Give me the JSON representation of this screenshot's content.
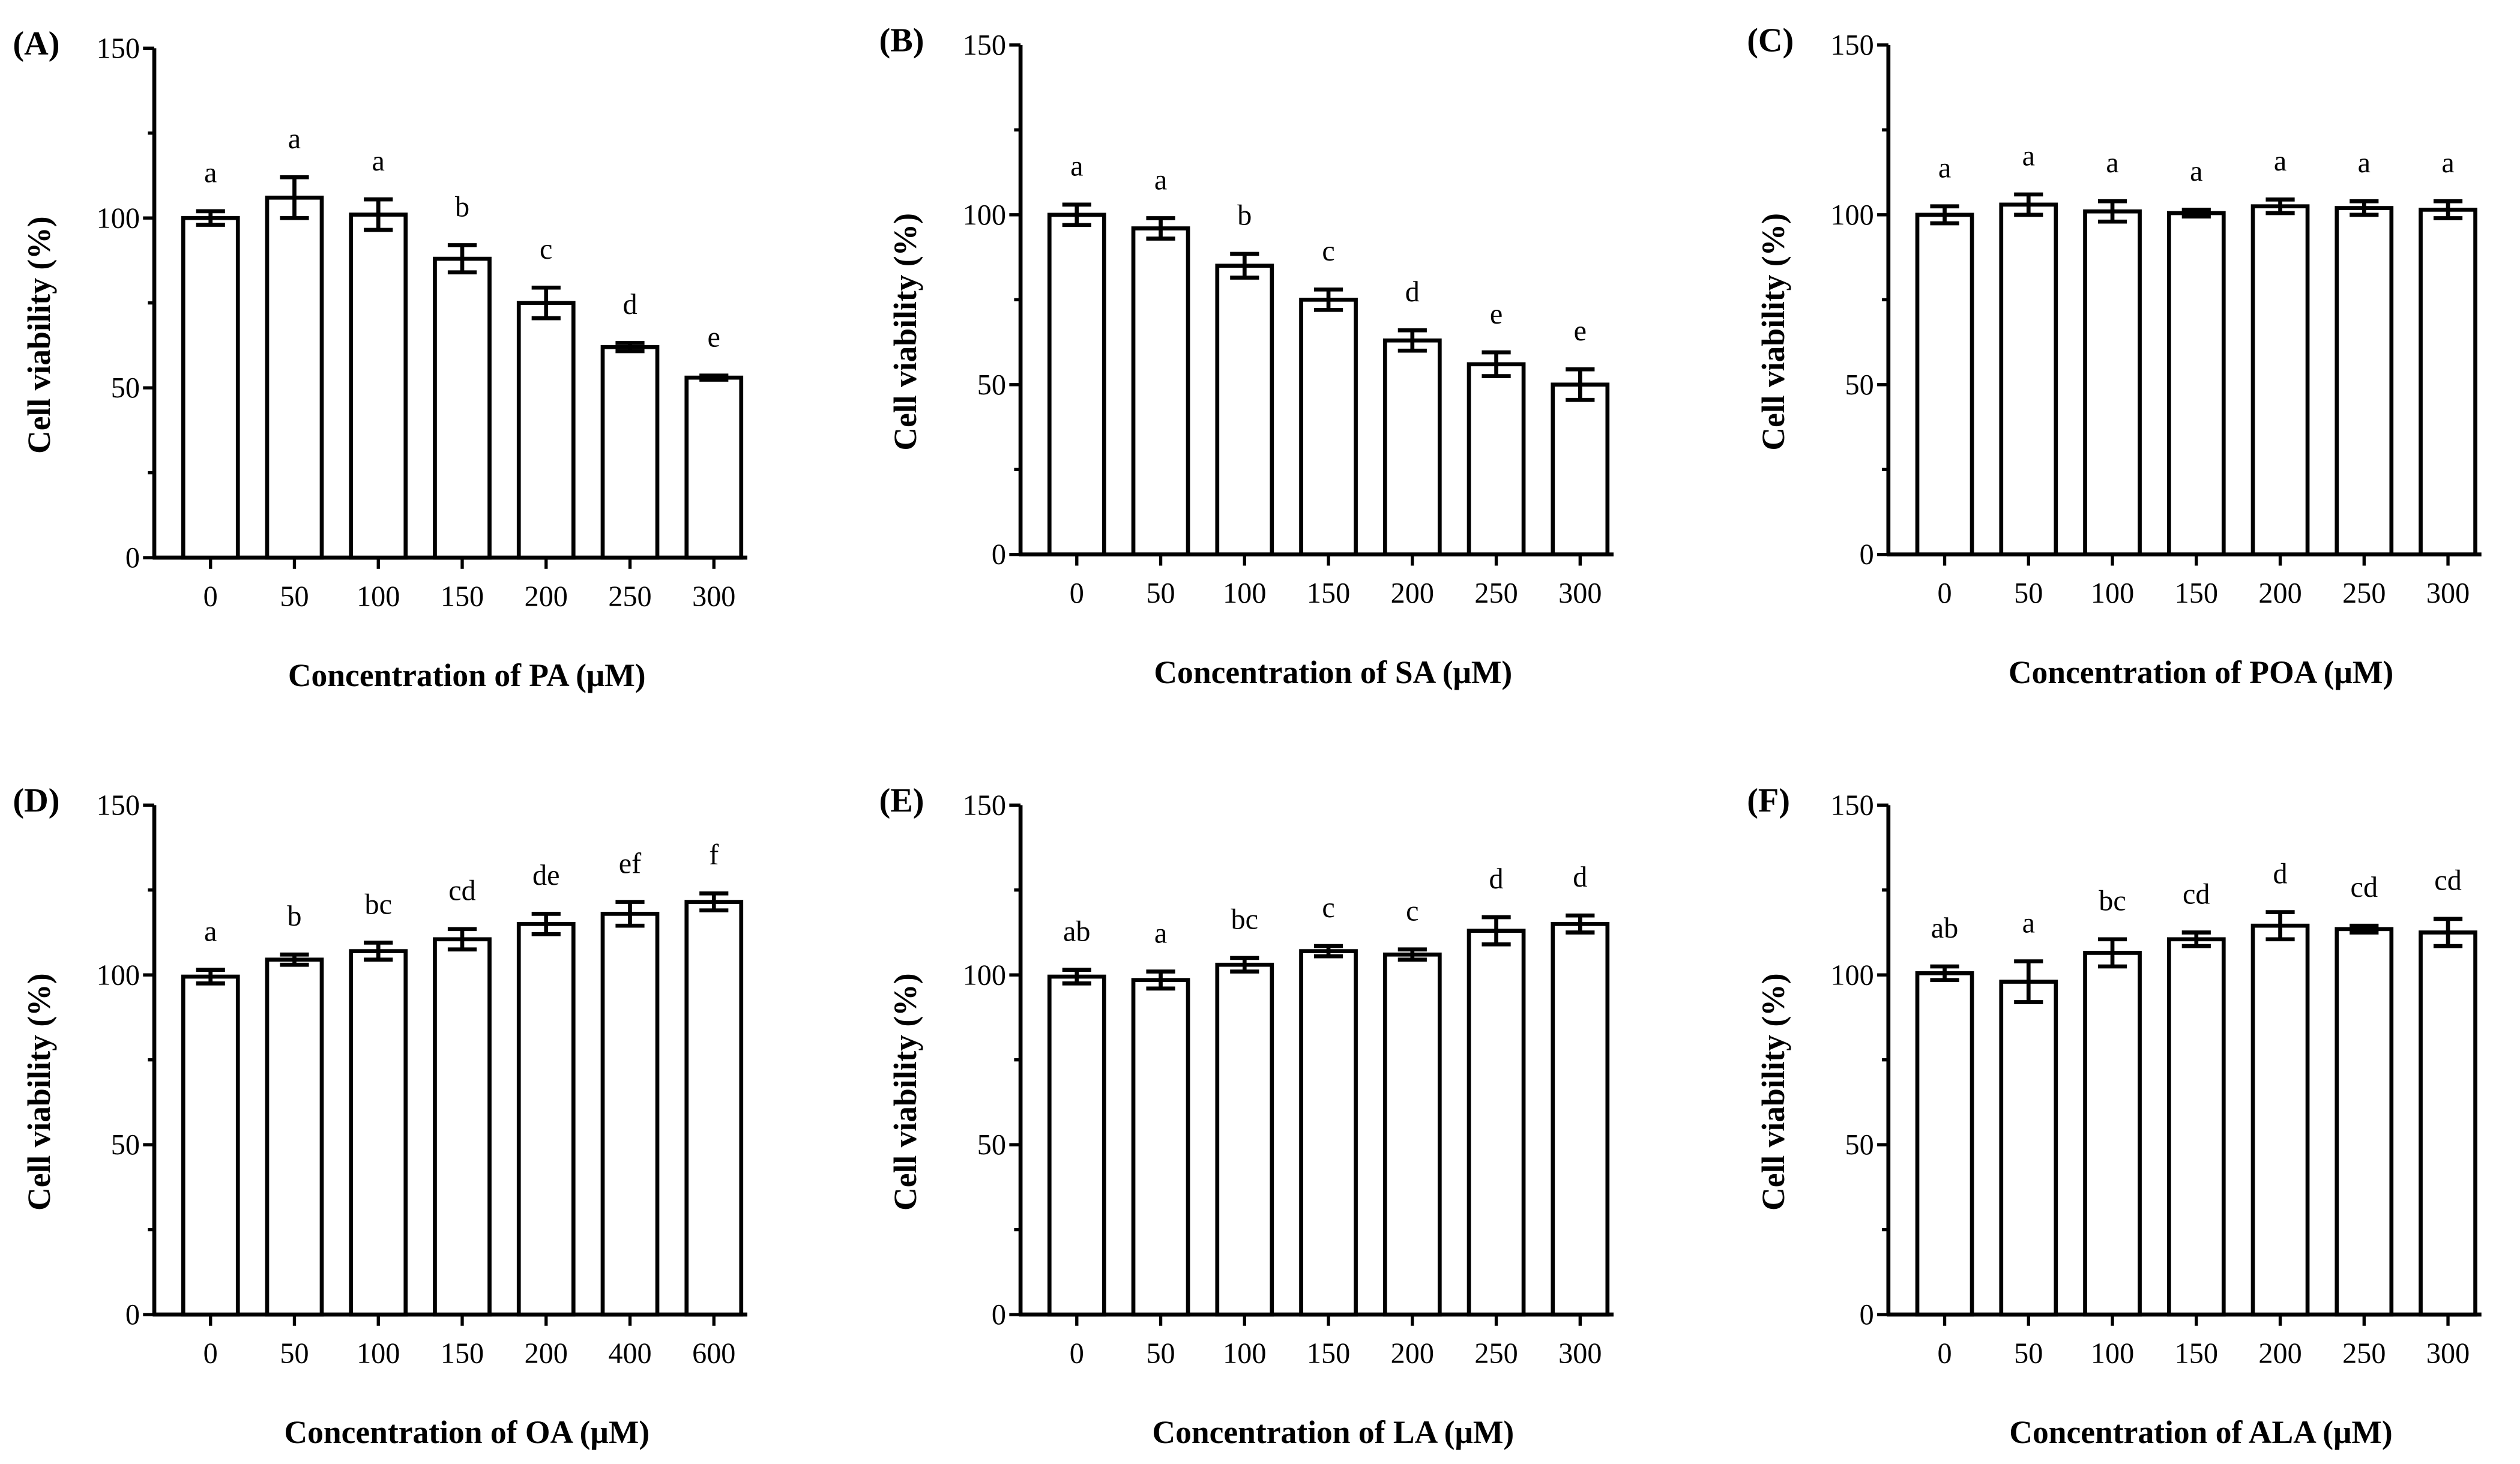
{
  "chart_data": [
    {
      "type": "bar",
      "panel": "(A)",
      "xlabel": "Concentration of PA (μM)",
      "ylabel": "Cell viability (%)",
      "ylim": [
        0,
        150
      ],
      "yticks": [
        0,
        50,
        100,
        150
      ],
      "categories": [
        "0",
        "50",
        "100",
        "150",
        "200",
        "250",
        "300"
      ],
      "values": [
        100,
        106,
        101,
        88,
        75,
        62,
        53
      ],
      "errors": [
        2,
        6,
        4.5,
        4,
        4.5,
        1.2,
        0.6
      ],
      "letters": [
        "a",
        "a",
        "a",
        "b",
        "c",
        "d",
        "e"
      ]
    },
    {
      "type": "bar",
      "panel": "(B)",
      "xlabel": "Concentration of SA (μM)",
      "ylabel": "Cell viability (%)",
      "ylim": [
        0,
        150
      ],
      "yticks": [
        0,
        50,
        100,
        150
      ],
      "categories": [
        "0",
        "50",
        "100",
        "150",
        "200",
        "250",
        "300"
      ],
      "values": [
        100,
        96,
        85,
        75,
        63,
        56,
        50
      ],
      "errors": [
        3,
        3,
        3.5,
        3,
        3,
        3.5,
        4.5
      ],
      "letters": [
        "a",
        "a",
        "b",
        "c",
        "d",
        "e",
        "e"
      ]
    },
    {
      "type": "bar",
      "panel": "(C)",
      "xlabel": "Concentration of POA (μM)",
      "ylabel": "Cell viability (%)",
      "ylim": [
        0,
        150
      ],
      "yticks": [
        0,
        50,
        100,
        150
      ],
      "categories": [
        "0",
        "50",
        "100",
        "150",
        "200",
        "250",
        "300"
      ],
      "values": [
        100,
        103,
        101,
        100.5,
        102.5,
        102,
        101.5
      ],
      "errors": [
        2.5,
        3,
        3,
        1,
        2,
        2,
        2.5
      ],
      "letters": [
        "a",
        "a",
        "a",
        "a",
        "a",
        "a",
        "a"
      ]
    },
    {
      "type": "bar",
      "panel": "(D)",
      "xlabel": "Concentration of OA (μM)",
      "ylabel": "Cell viability (%)",
      "ylim": [
        0,
        150
      ],
      "yticks": [
        0,
        50,
        100,
        150
      ],
      "categories": [
        "0",
        "50",
        "100",
        "150",
        "200",
        "400",
        "600"
      ],
      "values": [
        99.5,
        104.5,
        107,
        110.5,
        115,
        118,
        121.5
      ],
      "errors": [
        2,
        1.5,
        2.5,
        3,
        3,
        3.5,
        2.5
      ],
      "letters": [
        "a",
        "b",
        "bc",
        "cd",
        "de",
        "ef",
        "f"
      ]
    },
    {
      "type": "bar",
      "panel": "(E)",
      "xlabel": "Concentration of LA (μM)",
      "ylabel": "Cell viability (%)",
      "ylim": [
        0,
        150
      ],
      "yticks": [
        0,
        50,
        100,
        150
      ],
      "categories": [
        "0",
        "50",
        "100",
        "150",
        "200",
        "250",
        "300"
      ],
      "values": [
        99.5,
        98.5,
        103,
        107,
        106,
        113,
        115
      ],
      "errors": [
        2,
        2.5,
        2,
        1.5,
        1.5,
        4,
        2.5
      ],
      "letters": [
        "ab",
        "a",
        "bc",
        "c",
        "c",
        "d",
        "d"
      ]
    },
    {
      "type": "bar",
      "panel": "(F)",
      "xlabel": "Concentration of ALA (μM)",
      "ylabel": "Cell viability (%)",
      "ylim": [
        0,
        150
      ],
      "yticks": [
        0,
        50,
        100,
        150
      ],
      "categories": [
        "0",
        "50",
        "100",
        "150",
        "200",
        "250",
        "300"
      ],
      "values": [
        100.5,
        98,
        106.5,
        110.5,
        114.5,
        113.5,
        112.5
      ],
      "errors": [
        2,
        6,
        4,
        2,
        4,
        1,
        4
      ],
      "letters": [
        "ab",
        "a",
        "bc",
        "cd",
        "d",
        "cd",
        "cd"
      ]
    }
  ]
}
